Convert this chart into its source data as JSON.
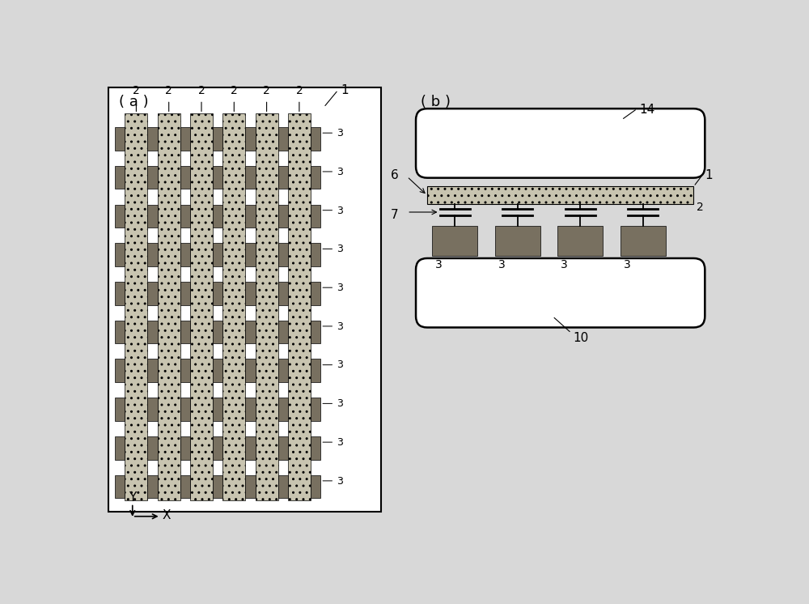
{
  "bg_color": "#d8d8d8",
  "panel_bg": "#ffffff",
  "label_a": "( a )",
  "label_b": "( b )",
  "light_strip_color": "#c8c4b0",
  "dark_seg_color": "#787060",
  "rounded_rect_facecolor": "#ffffff",
  "dotted_strip_color": "#c8c4b0",
  "num_strips": 6,
  "num_dark_rows": 10,
  "note14": "14",
  "note1": "1",
  "note2": "2",
  "note3": "3",
  "note6": "6",
  "note7": "7",
  "note10": "10"
}
